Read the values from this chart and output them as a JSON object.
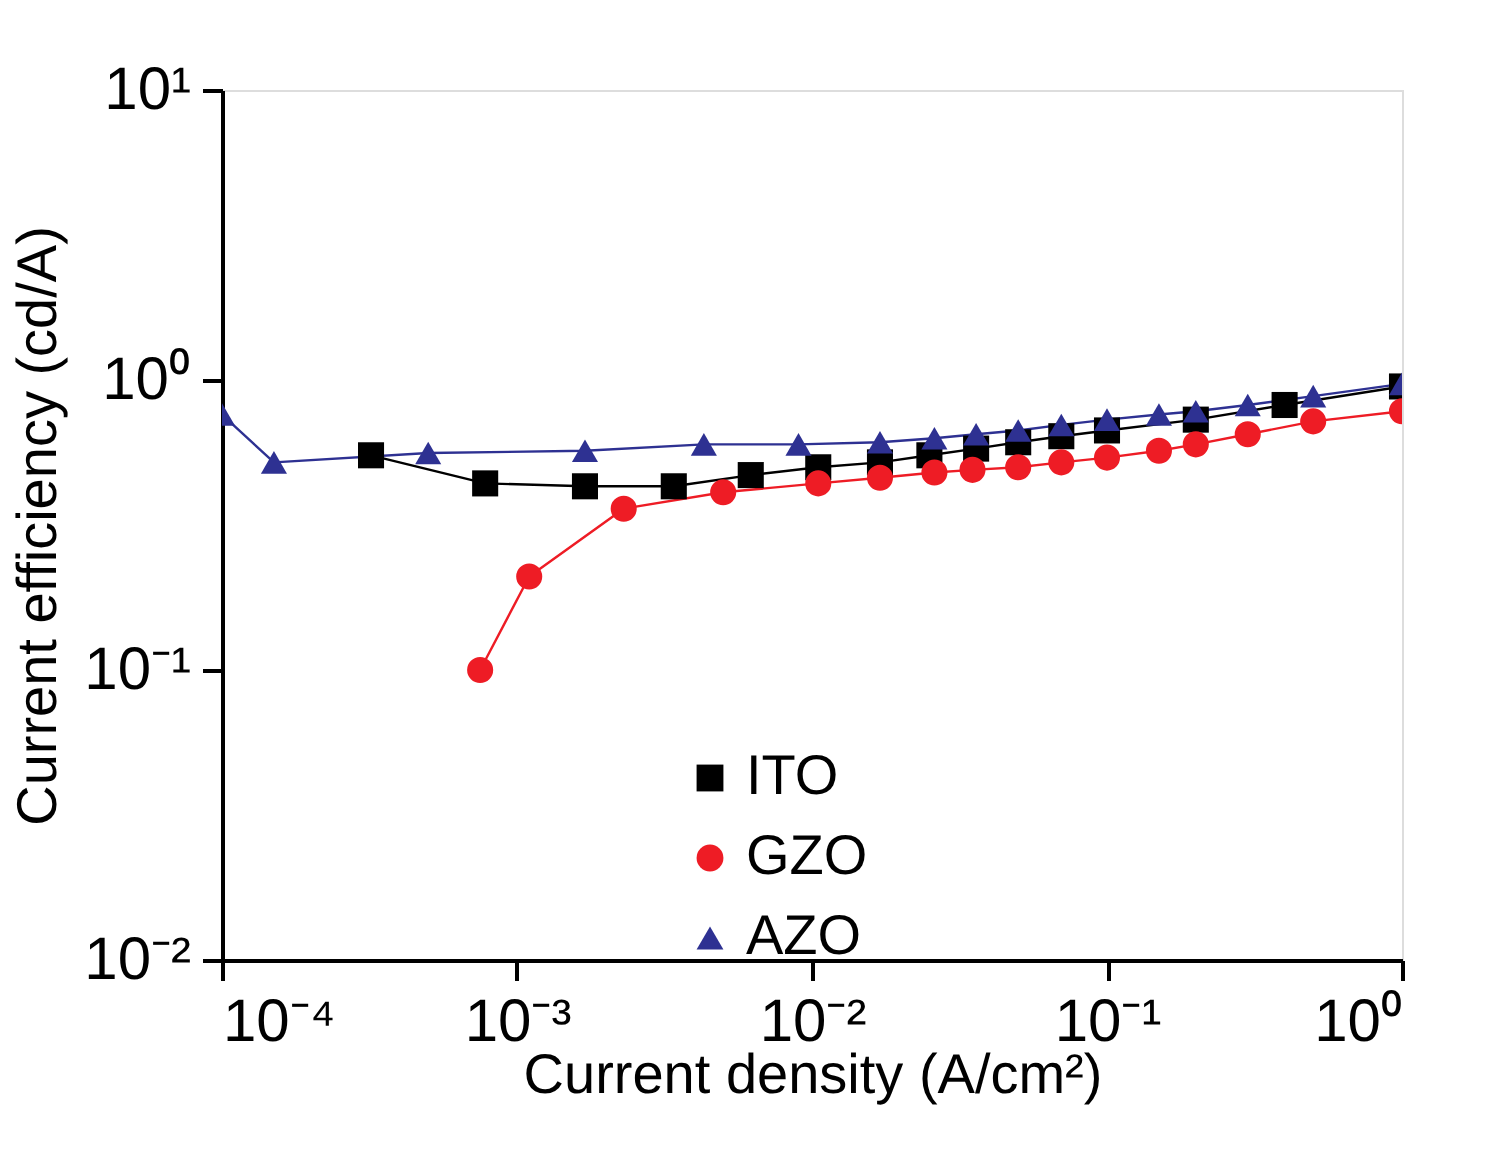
{
  "chart_data": {
    "type": "line",
    "xlabel": "Current density (A/cm²)",
    "ylabel": "Current efficiency (cd/A)",
    "log": "xy",
    "marker": "circle",
    "legend": "bottom",
    "grid": false,
    "xlim": [
      0.0001,
      1
    ],
    "ylim": [
      0.01,
      10
    ],
    "xticks": [
      {
        "value": 0.0001,
        "label": "10⁻⁴"
      },
      {
        "value": 0.001,
        "label": "10⁻³"
      },
      {
        "value": 0.01,
        "label": "10⁻²"
      },
      {
        "value": 0.1,
        "label": "10⁻¹"
      },
      {
        "value": 1,
        "label": "10⁰"
      }
    ],
    "yticks": [
      {
        "value": 0.01,
        "label": "10⁻²"
      },
      {
        "value": 0.1,
        "label": "10⁻¹"
      },
      {
        "value": 1,
        "label": "10⁰"
      },
      {
        "value": 10,
        "label": "10¹"
      }
    ],
    "series": [
      {
        "name": "ITO",
        "color": "#000000",
        "marker": "square",
        "x": [
          0.00032,
          0.00078,
          0.0017,
          0.0034,
          0.0062,
          0.0105,
          0.017,
          0.025,
          0.036,
          0.05,
          0.07,
          0.1,
          0.2,
          0.4,
          1
        ],
        "values": [
          0.55,
          0.44,
          0.43,
          0.43,
          0.47,
          0.5,
          0.52,
          0.55,
          0.58,
          0.61,
          0.64,
          0.67,
          0.73,
          0.82,
          0.95
        ]
      },
      {
        "name": "GZO",
        "color": "#ee1c25",
        "marker": "circle",
        "x": [
          0.00075,
          0.0011,
          0.0023,
          0.005,
          0.0105,
          0.017,
          0.026,
          0.035,
          0.05,
          0.07,
          0.1,
          0.15,
          0.2,
          0.3,
          0.5,
          1
        ],
        "values": [
          0.1,
          0.21,
          0.36,
          0.41,
          0.44,
          0.46,
          0.48,
          0.49,
          0.5,
          0.52,
          0.54,
          0.57,
          0.6,
          0.65,
          0.72,
          0.78
        ]
      },
      {
        "name": "AZO",
        "color": "#2e3192",
        "marker": "triangle",
        "x": [
          0.0001,
          0.00015,
          0.0005,
          0.0017,
          0.0043,
          0.009,
          0.017,
          0.026,
          0.036,
          0.05,
          0.07,
          0.1,
          0.15,
          0.2,
          0.3,
          0.5,
          1
        ],
        "values": [
          0.76,
          0.52,
          0.56,
          0.57,
          0.6,
          0.6,
          0.61,
          0.63,
          0.65,
          0.67,
          0.7,
          0.73,
          0.76,
          0.78,
          0.82,
          0.88,
          0.97
        ]
      }
    ]
  }
}
